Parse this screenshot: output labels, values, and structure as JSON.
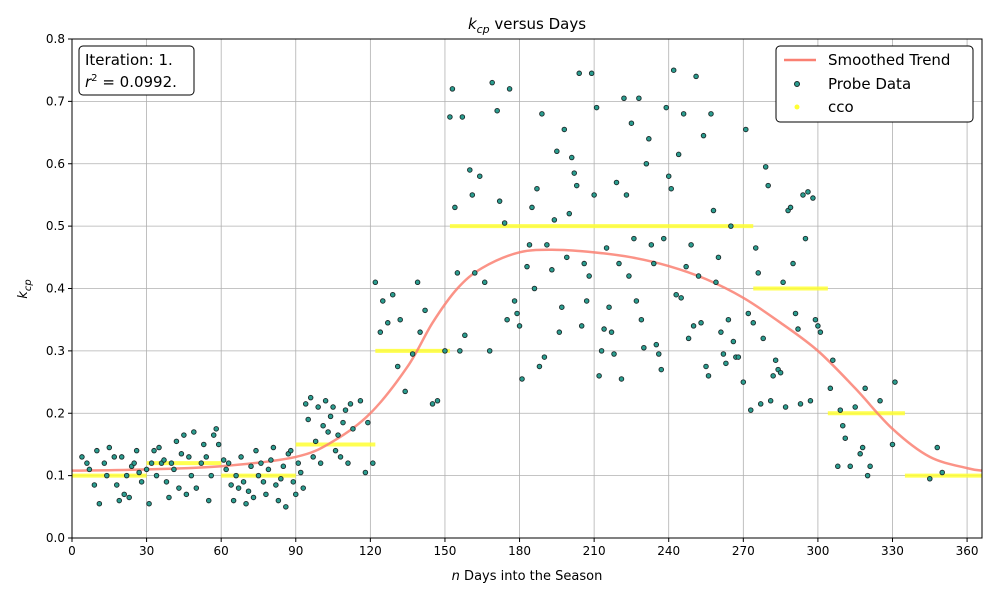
{
  "chart_data": {
    "type": "scatter",
    "title_main": "k",
    "title_sub": "cp",
    "title_rest": " versus Days",
    "xlabel_italic": "n",
    "xlabel_rest": " Days into the Season",
    "ylabel_main": "k",
    "ylabel_sub": "cp",
    "xlim": [
      0,
      366
    ],
    "ylim": [
      0.0,
      0.8
    ],
    "xticks": [
      0,
      30,
      60,
      90,
      120,
      150,
      180,
      210,
      240,
      270,
      300,
      330,
      360
    ],
    "yticks": [
      "0.0",
      "0.1",
      "0.2",
      "0.3",
      "0.4",
      "0.5",
      "0.6",
      "0.7",
      "0.8"
    ],
    "grid": true,
    "legend_position": "top-right",
    "annotation": {
      "line1": "Iteration: 1.",
      "line2_prefix": "r",
      "line2_sup": "2",
      "line2_rest": " = 0.0992."
    },
    "series": [
      {
        "name": "Smoothed Trend",
        "kind": "line",
        "color": "#fa8072",
        "points": [
          [
            0,
            0.108
          ],
          [
            30,
            0.11
          ],
          [
            60,
            0.115
          ],
          [
            90,
            0.13
          ],
          [
            105,
            0.155
          ],
          [
            120,
            0.2
          ],
          [
            135,
            0.275
          ],
          [
            145,
            0.345
          ],
          [
            155,
            0.4
          ],
          [
            165,
            0.433
          ],
          [
            180,
            0.458
          ],
          [
            195,
            0.462
          ],
          [
            210,
            0.458
          ],
          [
            225,
            0.45
          ],
          [
            240,
            0.436
          ],
          [
            255,
            0.415
          ],
          [
            270,
            0.385
          ],
          [
            285,
            0.345
          ],
          [
            300,
            0.3
          ],
          [
            315,
            0.24
          ],
          [
            330,
            0.175
          ],
          [
            345,
            0.13
          ],
          [
            360,
            0.112
          ],
          [
            366,
            0.108
          ]
        ]
      },
      {
        "name": "Probe Data",
        "kind": "scatter",
        "color": "#2a9d8f",
        "edge_color": "#1b2a2a",
        "points": [
          [
            4,
            0.13
          ],
          [
            6,
            0.12
          ],
          [
            7,
            0.11
          ],
          [
            9,
            0.085
          ],
          [
            10,
            0.14
          ],
          [
            11,
            0.055
          ],
          [
            13,
            0.12
          ],
          [
            14,
            0.1
          ],
          [
            15,
            0.145
          ],
          [
            17,
            0.13
          ],
          [
            18,
            0.085
          ],
          [
            19,
            0.06
          ],
          [
            20,
            0.13
          ],
          [
            21,
            0.07
          ],
          [
            22,
            0.1
          ],
          [
            23,
            0.065
          ],
          [
            24,
            0.115
          ],
          [
            25,
            0.12
          ],
          [
            26,
            0.14
          ],
          [
            27,
            0.105
          ],
          [
            28,
            0.09
          ],
          [
            30,
            0.11
          ],
          [
            31,
            0.055
          ],
          [
            32,
            0.12
          ],
          [
            33,
            0.14
          ],
          [
            34,
            0.1
          ],
          [
            35,
            0.145
          ],
          [
            36,
            0.12
          ],
          [
            37,
            0.125
          ],
          [
            38,
            0.09
          ],
          [
            39,
            0.065
          ],
          [
            40,
            0.12
          ],
          [
            41,
            0.11
          ],
          [
            42,
            0.155
          ],
          [
            43,
            0.08
          ],
          [
            44,
            0.135
          ],
          [
            45,
            0.165
          ],
          [
            46,
            0.07
          ],
          [
            47,
            0.13
          ],
          [
            48,
            0.1
          ],
          [
            49,
            0.17
          ],
          [
            50,
            0.08
          ],
          [
            52,
            0.12
          ],
          [
            53,
            0.15
          ],
          [
            54,
            0.13
          ],
          [
            55,
            0.06
          ],
          [
            56,
            0.1
          ],
          [
            57,
            0.165
          ],
          [
            58,
            0.175
          ],
          [
            59,
            0.15
          ],
          [
            61,
            0.125
          ],
          [
            62,
            0.11
          ],
          [
            63,
            0.12
          ],
          [
            64,
            0.085
          ],
          [
            65,
            0.06
          ],
          [
            66,
            0.1
          ],
          [
            67,
            0.08
          ],
          [
            68,
            0.13
          ],
          [
            69,
            0.09
          ],
          [
            70,
            0.055
          ],
          [
            71,
            0.075
          ],
          [
            72,
            0.115
          ],
          [
            73,
            0.065
          ],
          [
            74,
            0.14
          ],
          [
            75,
            0.1
          ],
          [
            76,
            0.12
          ],
          [
            77,
            0.09
          ],
          [
            78,
            0.07
          ],
          [
            79,
            0.11
          ],
          [
            80,
            0.125
          ],
          [
            81,
            0.145
          ],
          [
            82,
            0.085
          ],
          [
            83,
            0.06
          ],
          [
            84,
            0.095
          ],
          [
            85,
            0.115
          ],
          [
            86,
            0.05
          ],
          [
            87,
            0.135
          ],
          [
            88,
            0.14
          ],
          [
            89,
            0.09
          ],
          [
            90,
            0.07
          ],
          [
            91,
            0.12
          ],
          [
            92,
            0.105
          ],
          [
            93,
            0.08
          ],
          [
            94,
            0.215
          ],
          [
            95,
            0.19
          ],
          [
            96,
            0.225
          ],
          [
            97,
            0.13
          ],
          [
            98,
            0.155
          ],
          [
            99,
            0.21
          ],
          [
            100,
            0.12
          ],
          [
            101,
            0.18
          ],
          [
            102,
            0.22
          ],
          [
            103,
            0.17
          ],
          [
            104,
            0.195
          ],
          [
            105,
            0.21
          ],
          [
            106,
            0.14
          ],
          [
            107,
            0.165
          ],
          [
            108,
            0.13
          ],
          [
            109,
            0.185
          ],
          [
            110,
            0.205
          ],
          [
            111,
            0.12
          ],
          [
            112,
            0.215
          ],
          [
            113,
            0.175
          ],
          [
            116,
            0.22
          ],
          [
            118,
            0.105
          ],
          [
            119,
            0.185
          ],
          [
            121,
            0.12
          ],
          [
            122,
            0.41
          ],
          [
            124,
            0.33
          ],
          [
            125,
            0.38
          ],
          [
            127,
            0.345
          ],
          [
            129,
            0.39
          ],
          [
            131,
            0.275
          ],
          [
            132,
            0.35
          ],
          [
            134,
            0.235
          ],
          [
            137,
            0.295
          ],
          [
            139,
            0.41
          ],
          [
            140,
            0.33
          ],
          [
            142,
            0.365
          ],
          [
            145,
            0.215
          ],
          [
            147,
            0.22
          ],
          [
            150,
            0.3
          ],
          [
            152,
            0.675
          ],
          [
            153,
            0.72
          ],
          [
            154,
            0.53
          ],
          [
            155,
            0.425
          ],
          [
            156,
            0.3
          ],
          [
            157,
            0.675
          ],
          [
            158,
            0.325
          ],
          [
            160,
            0.59
          ],
          [
            161,
            0.55
          ],
          [
            162,
            0.425
          ],
          [
            164,
            0.58
          ],
          [
            166,
            0.41
          ],
          [
            168,
            0.3
          ],
          [
            169,
            0.73
          ],
          [
            171,
            0.685
          ],
          [
            172,
            0.54
          ],
          [
            174,
            0.505
          ],
          [
            175,
            0.35
          ],
          [
            176,
            0.72
          ],
          [
            178,
            0.38
          ],
          [
            179,
            0.36
          ],
          [
            180,
            0.34
          ],
          [
            181,
            0.255
          ],
          [
            183,
            0.435
          ],
          [
            184,
            0.47
          ],
          [
            185,
            0.53
          ],
          [
            186,
            0.4
          ],
          [
            187,
            0.56
          ],
          [
            188,
            0.275
          ],
          [
            189,
            0.68
          ],
          [
            190,
            0.29
          ],
          [
            191,
            0.47
          ],
          [
            193,
            0.43
          ],
          [
            194,
            0.51
          ],
          [
            195,
            0.62
          ],
          [
            196,
            0.33
          ],
          [
            197,
            0.37
          ],
          [
            198,
            0.655
          ],
          [
            199,
            0.45
          ],
          [
            200,
            0.52
          ],
          [
            201,
            0.61
          ],
          [
            202,
            0.585
          ],
          [
            203,
            0.565
          ],
          [
            204,
            0.745
          ],
          [
            205,
            0.34
          ],
          [
            206,
            0.44
          ],
          [
            207,
            0.38
          ],
          [
            208,
            0.42
          ],
          [
            209,
            0.745
          ],
          [
            210,
            0.55
          ],
          [
            211,
            0.69
          ],
          [
            212,
            0.26
          ],
          [
            213,
            0.3
          ],
          [
            214,
            0.335
          ],
          [
            215,
            0.465
          ],
          [
            216,
            0.37
          ],
          [
            217,
            0.33
          ],
          [
            218,
            0.295
          ],
          [
            219,
            0.57
          ],
          [
            220,
            0.44
          ],
          [
            221,
            0.255
          ],
          [
            222,
            0.705
          ],
          [
            223,
            0.55
          ],
          [
            224,
            0.42
          ],
          [
            225,
            0.665
          ],
          [
            226,
            0.48
          ],
          [
            227,
            0.38
          ],
          [
            228,
            0.705
          ],
          [
            229,
            0.35
          ],
          [
            230,
            0.305
          ],
          [
            231,
            0.6
          ],
          [
            232,
            0.64
          ],
          [
            233,
            0.47
          ],
          [
            234,
            0.44
          ],
          [
            235,
            0.31
          ],
          [
            236,
            0.295
          ],
          [
            237,
            0.27
          ],
          [
            238,
            0.48
          ],
          [
            239,
            0.69
          ],
          [
            240,
            0.58
          ],
          [
            241,
            0.56
          ],
          [
            242,
            0.75
          ],
          [
            243,
            0.39
          ],
          [
            244,
            0.615
          ],
          [
            245,
            0.385
          ],
          [
            246,
            0.68
          ],
          [
            247,
            0.435
          ],
          [
            248,
            0.32
          ],
          [
            249,
            0.47
          ],
          [
            250,
            0.34
          ],
          [
            251,
            0.74
          ],
          [
            252,
            0.42
          ],
          [
            253,
            0.345
          ],
          [
            254,
            0.645
          ],
          [
            255,
            0.275
          ],
          [
            256,
            0.26
          ],
          [
            257,
            0.68
          ],
          [
            258,
            0.525
          ],
          [
            259,
            0.41
          ],
          [
            260,
            0.45
          ],
          [
            261,
            0.33
          ],
          [
            262,
            0.295
          ],
          [
            263,
            0.28
          ],
          [
            264,
            0.35
          ],
          [
            265,
            0.5
          ],
          [
            266,
            0.315
          ],
          [
            267,
            0.29
          ],
          [
            268,
            0.29
          ],
          [
            270,
            0.25
          ],
          [
            271,
            0.655
          ],
          [
            272,
            0.36
          ],
          [
            273,
            0.205
          ],
          [
            274,
            0.345
          ],
          [
            275,
            0.465
          ],
          [
            276,
            0.425
          ],
          [
            277,
            0.215
          ],
          [
            278,
            0.32
          ],
          [
            279,
            0.595
          ],
          [
            280,
            0.565
          ],
          [
            281,
            0.22
          ],
          [
            282,
            0.26
          ],
          [
            283,
            0.285
          ],
          [
            284,
            0.27
          ],
          [
            285,
            0.265
          ],
          [
            286,
            0.41
          ],
          [
            287,
            0.21
          ],
          [
            288,
            0.525
          ],
          [
            289,
            0.53
          ],
          [
            290,
            0.44
          ],
          [
            291,
            0.36
          ],
          [
            292,
            0.335
          ],
          [
            293,
            0.215
          ],
          [
            294,
            0.55
          ],
          [
            295,
            0.48
          ],
          [
            296,
            0.555
          ],
          [
            297,
            0.22
          ],
          [
            298,
            0.545
          ],
          [
            299,
            0.35
          ],
          [
            300,
            0.34
          ],
          [
            301,
            0.33
          ],
          [
            305,
            0.24
          ],
          [
            306,
            0.285
          ],
          [
            308,
            0.115
          ],
          [
            309,
            0.205
          ],
          [
            310,
            0.18
          ],
          [
            311,
            0.16
          ],
          [
            313,
            0.115
          ],
          [
            315,
            0.21
          ],
          [
            317,
            0.135
          ],
          [
            318,
            0.145
          ],
          [
            319,
            0.24
          ],
          [
            320,
            0.1
          ],
          [
            321,
            0.115
          ],
          [
            325,
            0.22
          ],
          [
            330,
            0.15
          ],
          [
            331,
            0.25
          ],
          [
            345,
            0.095
          ],
          [
            348,
            0.145
          ],
          [
            350,
            0.105
          ]
        ]
      },
      {
        "name": "cco",
        "kind": "steps",
        "color": "#ffff33",
        "segments": [
          [
            0,
            30,
            0.1
          ],
          [
            30,
            60,
            0.12
          ],
          [
            60,
            90,
            0.1
          ],
          [
            90,
            122,
            0.15
          ],
          [
            122,
            152,
            0.3
          ],
          [
            152,
            274,
            0.5
          ],
          [
            274,
            304,
            0.4
          ],
          [
            304,
            335,
            0.2
          ],
          [
            335,
            366,
            0.1
          ]
        ]
      }
    ]
  }
}
